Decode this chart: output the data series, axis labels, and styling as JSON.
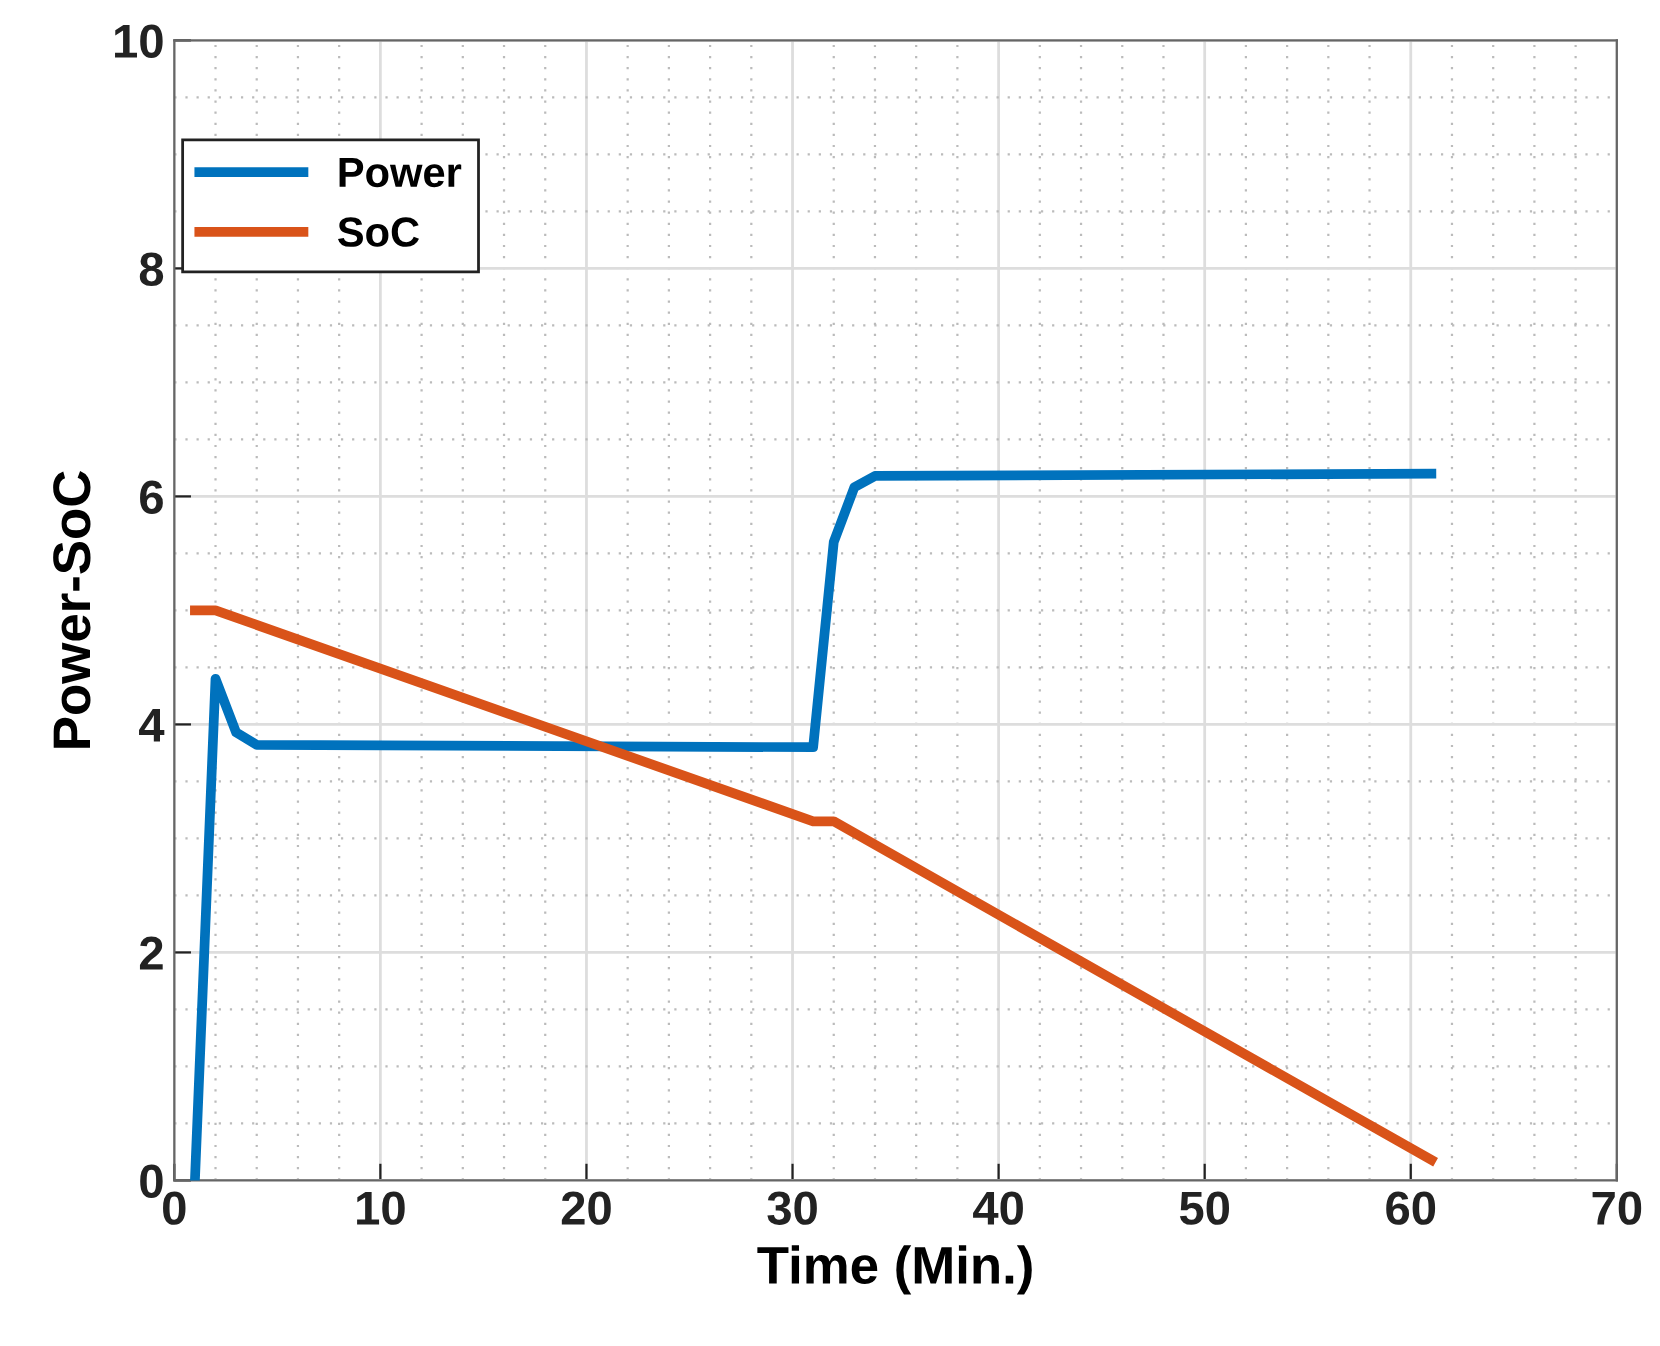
{
  "chart_data": {
    "type": "line",
    "xlabel": "Time (Min.)",
    "ylabel": "Power-SoC",
    "xlim": [
      0,
      70
    ],
    "xticks": [
      0,
      10,
      20,
      30,
      40,
      50,
      60,
      70
    ],
    "ylim": [
      0,
      10
    ],
    "yticks": [
      0,
      2,
      4,
      6,
      8,
      10
    ],
    "grid": true,
    "legend": "top left",
    "marker": "none",
    "line_style": "solid",
    "series": [
      {
        "name": "Power",
        "color": "#0072bd",
        "x": [
          1,
          2,
          3,
          4,
          31,
          32,
          33,
          34,
          61
        ],
        "values": [
          0,
          4.4,
          3.93,
          3.82,
          3.8,
          5.6,
          6.08,
          6.18,
          6.2
        ]
      },
      {
        "name": "SoC",
        "color": "#d95319",
        "x": [
          1,
          2,
          31,
          32,
          61
        ],
        "values": [
          5,
          5,
          3.15,
          3.15,
          0.18
        ]
      }
    ]
  }
}
